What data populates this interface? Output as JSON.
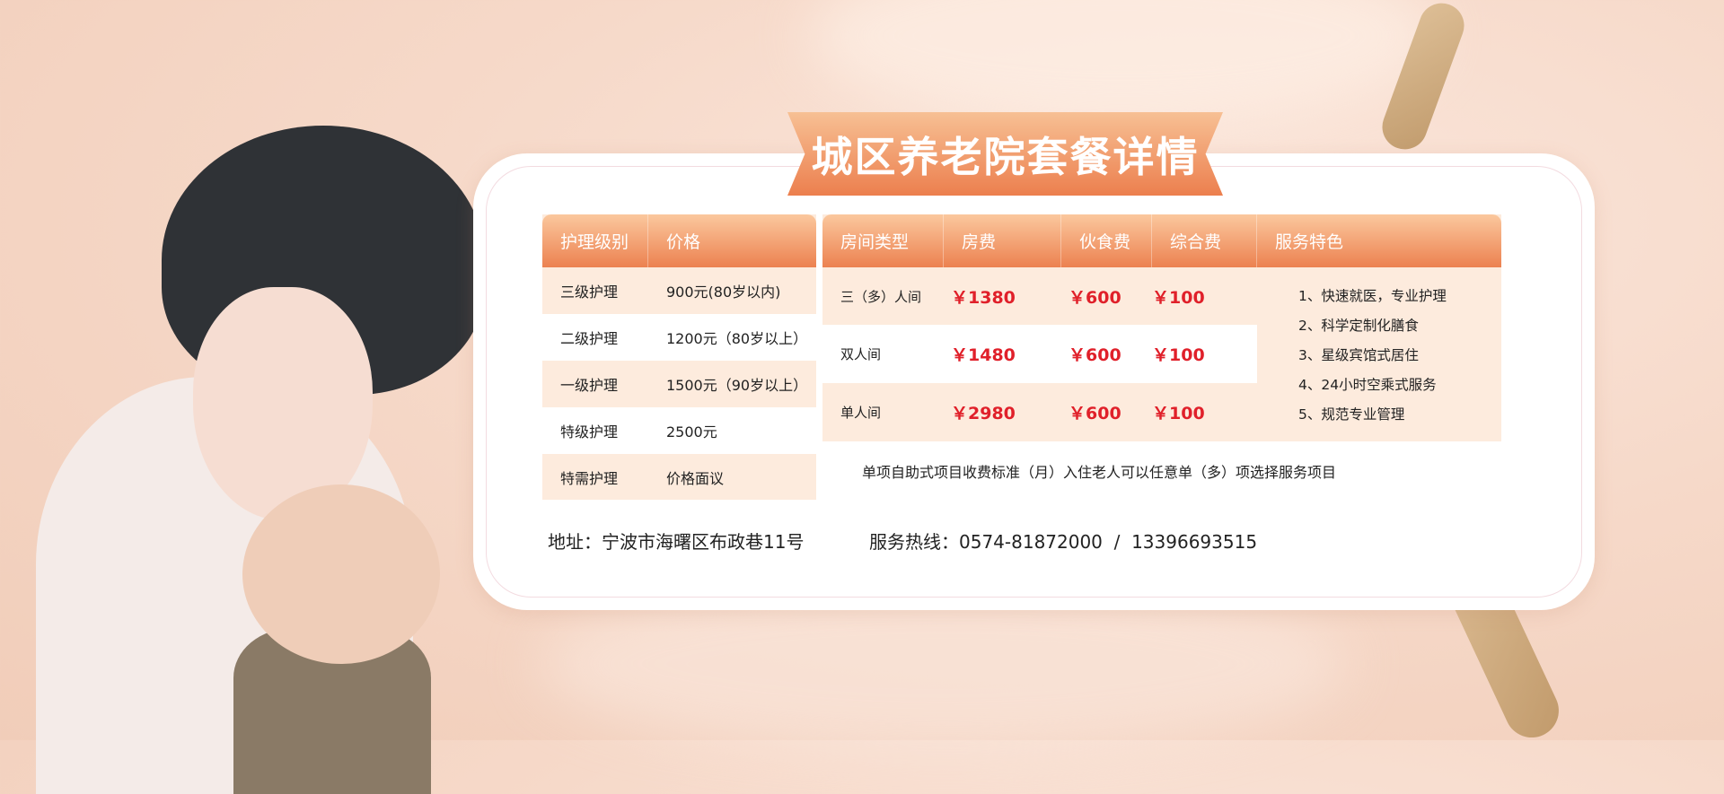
{
  "title": "城区养老院套餐详情",
  "care_table": {
    "headers": [
      "护理级别",
      "价格"
    ],
    "rows": [
      [
        "三级护理",
        "900元(80岁以内)"
      ],
      [
        "二级护理",
        "1200元（80岁以上）"
      ],
      [
        "一级护理",
        "1500元（90岁以上）"
      ],
      [
        "特级护理",
        "2500元"
      ],
      [
        "特需护理",
        "价格面议"
      ]
    ]
  },
  "room_table": {
    "headers": [
      "房间类型",
      "房费",
      "伙食费",
      "综合费",
      "服务特色"
    ],
    "rows": [
      [
        "三（多）人间",
        "￥1380",
        "￥600",
        "￥100"
      ],
      [
        "双人间",
        "￥1480",
        "￥600",
        "￥100"
      ],
      [
        "单人间",
        "￥2980",
        "￥600",
        "￥100"
      ]
    ],
    "services": [
      "1、快速就医，专业护理",
      "2、科学定制化膳食",
      "3、星级宾馆式居住",
      "4、24小时空乘式服务",
      "5、规范专业管理"
    ],
    "footer": "单项自助式项目收费标准（月）入住老人可以任意单（多）项选择服务项目"
  },
  "contact": {
    "address": "地址：宁波市海曙区布政巷11号",
    "hotline": "服务热线：0574-81872000  /  13396693515"
  },
  "colors": {
    "header": "#ec8150",
    "price": "#e0202a",
    "row_bg": "#fdebdd"
  }
}
